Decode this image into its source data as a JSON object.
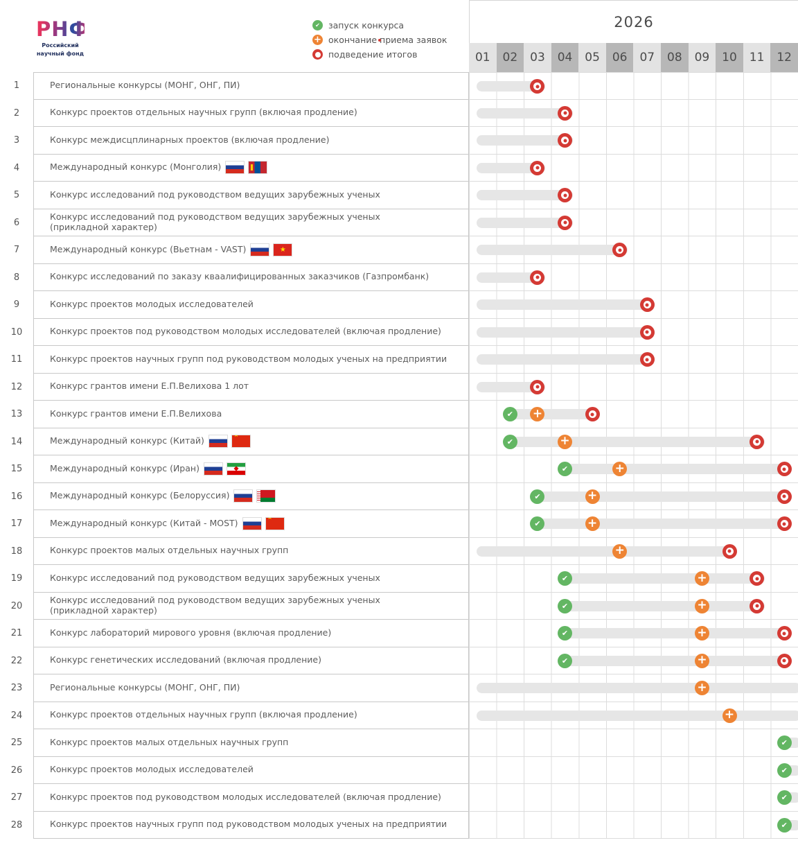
{
  "logo": {
    "abbr": "РНФ",
    "subtitle": "Российский\nнаучный фонд"
  },
  "legend": [
    {
      "type": "launch",
      "icon": "launch-check-icon",
      "label": "запуск конкурса"
    },
    {
      "type": "deadline",
      "icon": "deadline-plus-icon",
      "label": "окончание приема заявок"
    },
    {
      "type": "results",
      "icon": "results-target-icon",
      "label": "подведение итогов"
    }
  ],
  "colors": {
    "launch": "#63b663",
    "deadline": "#ee8434",
    "results": "#d43a34",
    "bar": "#e6e6e6",
    "month_light": "#e3e3e3",
    "month_dark": "#b7b7b7"
  },
  "chart_data": {
    "type": "table",
    "title": "2026",
    "x": [
      "01",
      "02",
      "03",
      "04",
      "05",
      "06",
      "07",
      "08",
      "09",
      "10",
      "11",
      "12"
    ],
    "legend_position": "top",
    "rows": [
      {
        "num": "1",
        "title": "Региональные конкурсы (МОНГ, ОНГ, ПИ)",
        "flags": [],
        "markers": {
          "launch": null,
          "deadline": null,
          "results": 3
        },
        "bar": {
          "extends": false
        }
      },
      {
        "num": "2",
        "title": "Конкурс проектов отдельных научных групп (включая продление)",
        "flags": [],
        "markers": {
          "launch": null,
          "deadline": null,
          "results": 4
        },
        "bar": {
          "extends": false
        }
      },
      {
        "num": "3",
        "title": "Конкурс междисцплинарных проектов (включая продление)",
        "flags": [],
        "markers": {
          "launch": null,
          "deadline": null,
          "results": 4
        },
        "bar": {
          "extends": false
        }
      },
      {
        "num": "4",
        "title": "Международный конкурс (Монголия)",
        "flags": [
          "ru",
          "mn"
        ],
        "markers": {
          "launch": null,
          "deadline": null,
          "results": 3
        },
        "bar": {
          "extends": false
        }
      },
      {
        "num": "5",
        "title": "Конкурс исследований под руководством ведущих зарубежных ученых",
        "flags": [],
        "markers": {
          "launch": null,
          "deadline": null,
          "results": 4
        },
        "bar": {
          "extends": false
        }
      },
      {
        "num": "6",
        "title": "Конкурс исследований под руководством ведущих зарубежных ученых\n(прикладной характер)",
        "flags": [],
        "markers": {
          "launch": null,
          "deadline": null,
          "results": 4
        },
        "bar": {
          "extends": false
        }
      },
      {
        "num": "7",
        "title": "Международный конкурс (Вьетнам - VAST)",
        "flags": [
          "ru",
          "vn"
        ],
        "markers": {
          "launch": null,
          "deadline": null,
          "results": 6
        },
        "bar": {
          "extends": false
        }
      },
      {
        "num": "8",
        "title": "Конкурс исследований по заказу кваалифицированных заказчиков (Газпромбанк)",
        "flags": [],
        "markers": {
          "launch": null,
          "deadline": null,
          "results": 3
        },
        "bar": {
          "extends": false
        }
      },
      {
        "num": "9",
        "title": "Конкурс проектов молодых исследователей",
        "flags": [],
        "markers": {
          "launch": null,
          "deadline": null,
          "results": 7
        },
        "bar": {
          "extends": false
        }
      },
      {
        "num": "10",
        "title": "Конкурс проектов под руководством молодых исследователей (включая продление)",
        "flags": [],
        "markers": {
          "launch": null,
          "deadline": null,
          "results": 7
        },
        "bar": {
          "extends": false
        }
      },
      {
        "num": "11",
        "title": "Конкурс проектов научных групп под руководством молодых ученых на предприятии",
        "flags": [],
        "markers": {
          "launch": null,
          "deadline": null,
          "results": 7
        },
        "bar": {
          "extends": false
        }
      },
      {
        "num": "12",
        "title": "Конкурс грантов имени Е.П.Велихова 1 лот",
        "flags": [],
        "markers": {
          "launch": null,
          "deadline": null,
          "results": 3
        },
        "bar": {
          "extends": false
        }
      },
      {
        "num": "13",
        "title": "Конкурс грантов имени Е.П.Велихова",
        "flags": [],
        "markers": {
          "launch": 2,
          "deadline": 3,
          "results": 5
        },
        "bar": {
          "extends": false
        }
      },
      {
        "num": "14",
        "title": "Международный конкурс (Китай)",
        "flags": [
          "ru",
          "cn"
        ],
        "markers": {
          "launch": 2,
          "deadline": 4,
          "results": 11
        },
        "bar": {
          "extends": false
        }
      },
      {
        "num": "15",
        "title": "Международный конкурс (Иран)",
        "flags": [
          "ru",
          "ir"
        ],
        "markers": {
          "launch": 4,
          "deadline": 6,
          "results": 12
        },
        "bar": {
          "extends": false
        }
      },
      {
        "num": "16",
        "title": "Международный конкурс (Белоруссия)",
        "flags": [
          "ru",
          "by"
        ],
        "markers": {
          "launch": 3,
          "deadline": 5,
          "results": 12
        },
        "bar": {
          "extends": false
        }
      },
      {
        "num": "17",
        "title": "Международный конкурс (Китай - MOST)",
        "flags": [
          "ru",
          "cn"
        ],
        "markers": {
          "launch": 3,
          "deadline": 5,
          "results": 12
        },
        "bar": {
          "extends": false
        }
      },
      {
        "num": "18",
        "title": "Конкурс проектов малых отдельных научных групп",
        "flags": [],
        "markers": {
          "launch": null,
          "deadline": 6,
          "results": 10
        },
        "bar": {
          "extends": false
        }
      },
      {
        "num": "19",
        "title": "Конкурс исследований под руководством ведущих зарубежных ученых",
        "flags": [],
        "markers": {
          "launch": 4,
          "deadline": 9,
          "results": 11
        },
        "bar": {
          "extends": false
        }
      },
      {
        "num": "20",
        "title": "Конкурс исследований под руководством ведущих зарубежных ученых\n(прикладной характер)",
        "flags": [],
        "markers": {
          "launch": 4,
          "deadline": 9,
          "results": 11
        },
        "bar": {
          "extends": false
        }
      },
      {
        "num": "21",
        "title": "Конкурс лабораторий мирового уровня (включая продление)",
        "flags": [],
        "markers": {
          "launch": 4,
          "deadline": 9,
          "results": 12
        },
        "bar": {
          "extends": false
        }
      },
      {
        "num": "22",
        "title": "Конкурс генетических исследований (включая продление)",
        "flags": [],
        "markers": {
          "launch": 4,
          "deadline": 9,
          "results": 12
        },
        "bar": {
          "extends": false
        }
      },
      {
        "num": "23",
        "title": "Региональные конкурсы  (МОНГ, ОНГ, ПИ)",
        "flags": [],
        "markers": {
          "launch": null,
          "deadline": 9,
          "results": null
        },
        "bar": {
          "extends": true
        }
      },
      {
        "num": "24",
        "title": "Конкурс проектов отдельных научных групп (включая продление)",
        "flags": [],
        "markers": {
          "launch": null,
          "deadline": 10,
          "results": null
        },
        "bar": {
          "extends": true
        }
      },
      {
        "num": "25",
        "title": "Конкурс проектов малых отдельных научных групп",
        "flags": [],
        "markers": {
          "launch": 12,
          "deadline": null,
          "results": null
        },
        "bar": {
          "extends": true
        }
      },
      {
        "num": "26",
        "title": "Конкурс проектов молодых исследователей",
        "flags": [],
        "markers": {
          "launch": 12,
          "deadline": null,
          "results": null
        },
        "bar": {
          "extends": true
        }
      },
      {
        "num": "27",
        "title": "Конкурс проектов под руководством молодых исследователей (включая продление)",
        "flags": [],
        "markers": {
          "launch": 12,
          "deadline": null,
          "results": null
        },
        "bar": {
          "extends": true
        }
      },
      {
        "num": "28",
        "title": "Конкурс проектов научных групп под руководством молодых ученых на предприятии",
        "flags": [],
        "markers": {
          "launch": 12,
          "deadline": null,
          "results": null
        },
        "bar": {
          "extends": true
        }
      }
    ]
  },
  "timeline": {
    "year": "2026",
    "months": [
      "01",
      "02",
      "03",
      "04",
      "05",
      "06",
      "07",
      "08",
      "09",
      "10",
      "11",
      "12"
    ]
  }
}
